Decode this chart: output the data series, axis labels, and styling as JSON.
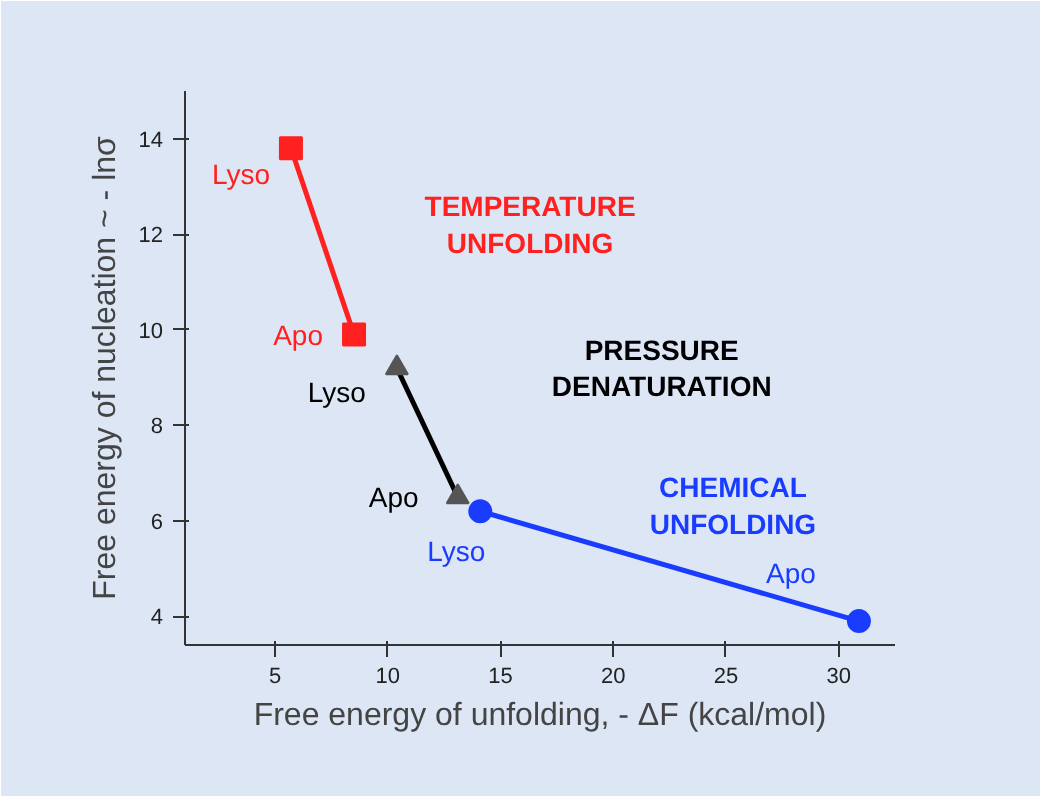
{
  "chart_data": {
    "type": "line",
    "xlabel": "Free energy of unfolding, - ΔF (kcal/mol)",
    "ylabel": "Free energy of nucleation ~ - lnσ",
    "xlim": [
      1,
      32.5
    ],
    "ylim": [
      3.4,
      15
    ],
    "xticks": [
      5,
      10,
      15,
      20,
      25,
      30
    ],
    "yticks": [
      4,
      6,
      8,
      10,
      12,
      14
    ],
    "grid": false,
    "series": [
      {
        "name": "TEMPERATURE UNFOLDING",
        "color": "#ff2020",
        "marker": "square",
        "x": [
          5.7,
          8.5
        ],
        "values": [
          13.8,
          9.9
        ]
      },
      {
        "name": "PRESSURE DENATURATION",
        "color": "#000000",
        "marker": "triangle",
        "x": [
          10.4,
          13.1
        ],
        "values": [
          9.2,
          6.5
        ]
      },
      {
        "name": "CHEMICAL UNFOLDING",
        "color": "#1a3cff",
        "marker": "circle",
        "x": [
          14.1,
          30.9
        ],
        "values": [
          6.2,
          3.9
        ]
      }
    ],
    "annotations": [
      {
        "text": "Lyso",
        "x": 5.7,
        "y": 13.8
      },
      {
        "text": "Apo",
        "x": 8.5,
        "y": 9.9
      },
      {
        "text": "Lyso",
        "x": 10.4,
        "y": 9.2
      },
      {
        "text": "Apo",
        "x": 13.1,
        "y": 6.5
      },
      {
        "text": "Lyso",
        "x": 14.1,
        "y": 6.2
      },
      {
        "text": "Apo",
        "x": 30.9,
        "y": 3.9
      }
    ]
  }
}
